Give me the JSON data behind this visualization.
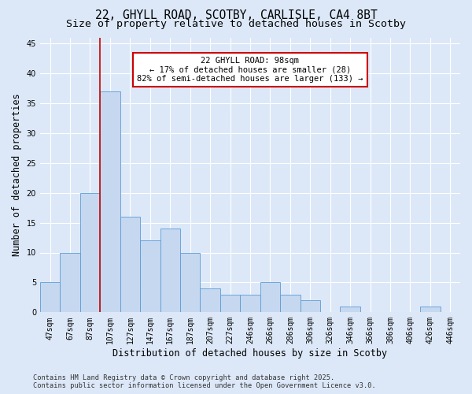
{
  "title_line1": "22, GHYLL ROAD, SCOTBY, CARLISLE, CA4 8BT",
  "title_line2": "Size of property relative to detached houses in Scotby",
  "xlabel": "Distribution of detached houses by size in Scotby",
  "ylabel": "Number of detached properties",
  "categories": [
    "47sqm",
    "67sqm",
    "87sqm",
    "107sqm",
    "127sqm",
    "147sqm",
    "167sqm",
    "187sqm",
    "207sqm",
    "227sqm",
    "246sqm",
    "266sqm",
    "286sqm",
    "306sqm",
    "326sqm",
    "346sqm",
    "366sqm",
    "386sqm",
    "406sqm",
    "426sqm",
    "446sqm"
  ],
  "values": [
    5,
    10,
    20,
    37,
    16,
    12,
    14,
    10,
    4,
    3,
    3,
    5,
    3,
    2,
    0,
    1,
    0,
    0,
    0,
    1,
    0
  ],
  "bar_color": "#c5d8f0",
  "bar_edge_color": "#5b9bd5",
  "red_line_index": 2.5,
  "annotation_text": "22 GHYLL ROAD: 98sqm\n← 17% of detached houses are smaller (28)\n82% of semi-detached houses are larger (133) →",
  "annotation_box_color": "#ffffff",
  "annotation_box_edge": "#cc0000",
  "red_line_color": "#cc0000",
  "ylim": [
    0,
    46
  ],
  "yticks": [
    0,
    5,
    10,
    15,
    20,
    25,
    30,
    35,
    40,
    45
  ],
  "background_color": "#dce8f8",
  "grid_color": "#ffffff",
  "footer_text": "Contains HM Land Registry data © Crown copyright and database right 2025.\nContains public sector information licensed under the Open Government Licence v3.0.",
  "title_fontsize": 10.5,
  "subtitle_fontsize": 9.5,
  "tick_fontsize": 7,
  "label_fontsize": 8.5,
  "annotation_fontsize": 7.5,
  "fig_bg_color": "#dce8f8"
}
